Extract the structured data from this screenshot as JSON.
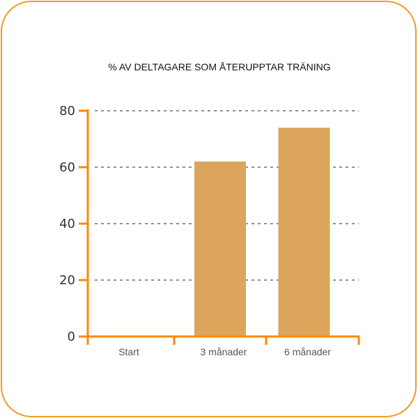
{
  "chart_data": {
    "type": "bar",
    "title": "% AV DELTAGARE SOM ÅTERUPPTAR TRÄNING",
    "categories": [
      "Start",
      "3 månader",
      "6 månader"
    ],
    "values": [
      0,
      62,
      74
    ],
    "ylim": [
      0,
      80
    ],
    "yticks": [
      0,
      20,
      40,
      60,
      80
    ],
    "xlabel": "",
    "ylabel": "",
    "grid": "horizontal dashed",
    "colors": {
      "bar": "#dba65c",
      "axis": "#ff8800",
      "frame": "#f39a1f"
    }
  }
}
